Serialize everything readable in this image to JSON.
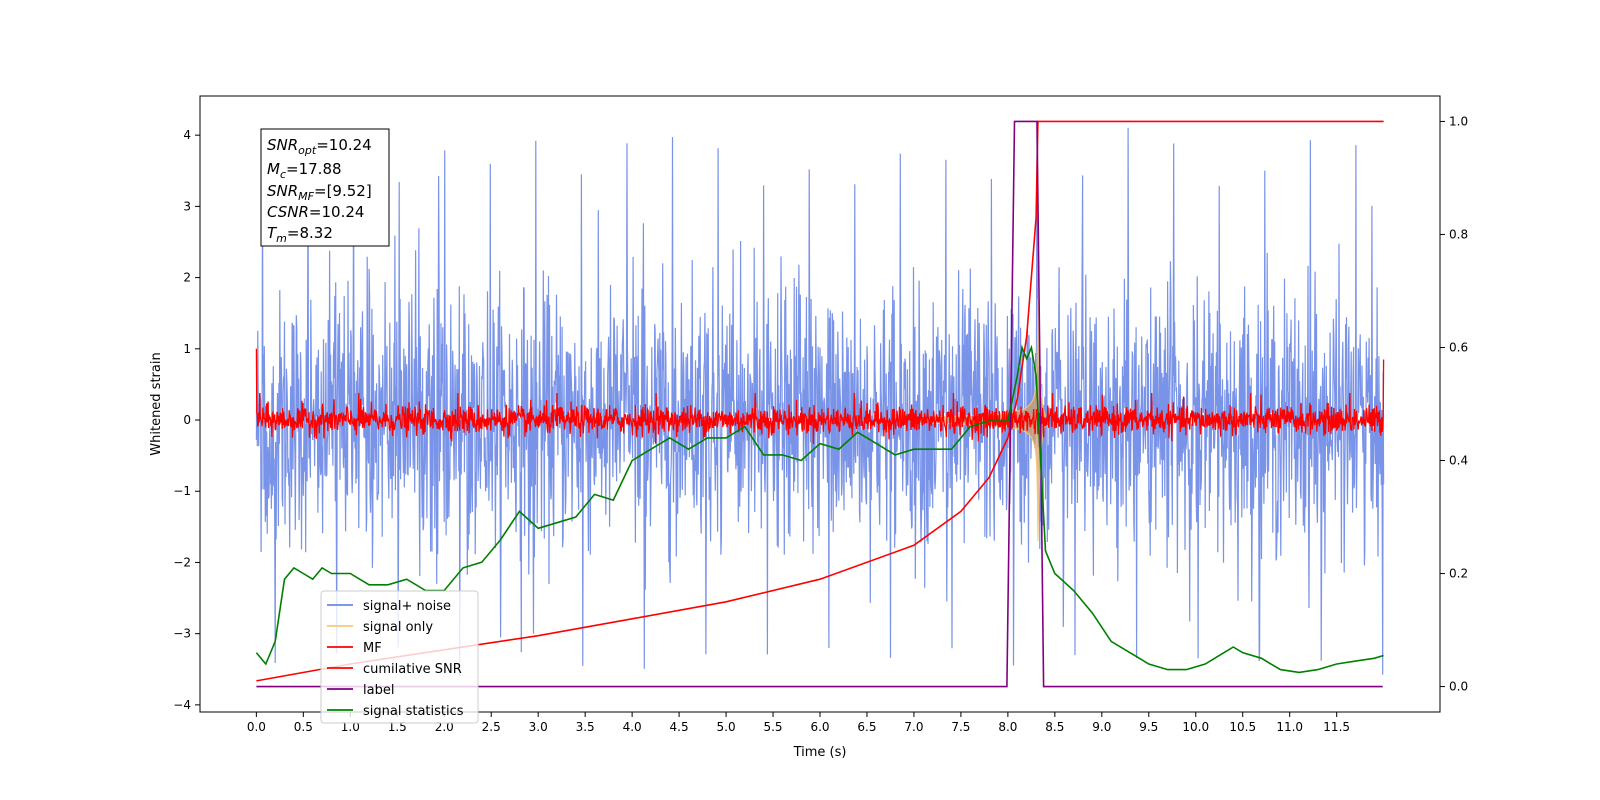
{
  "chart_data": {
    "type": "line",
    "xlabel": "Time (s)",
    "ylabel": "Whitened strain",
    "xlim": [
      -0.6,
      12.6
    ],
    "ylim": [
      -4.1,
      4.55
    ],
    "y2lim": [
      -0.045,
      1.045
    ],
    "x_ticks": [
      "0.0",
      "0.5",
      "1.0",
      "1.5",
      "2.0",
      "2.5",
      "3.0",
      "3.5",
      "4.0",
      "4.5",
      "5.0",
      "5.5",
      "6.0",
      "6.5",
      "7.0",
      "7.5",
      "8.0",
      "8.5",
      "9.0",
      "9.5",
      "10.0",
      "10.5",
      "11.0",
      "11.5"
    ],
    "y_ticks": [
      "−4",
      "−3",
      "−2",
      "−1",
      "0",
      "1",
      "2",
      "3",
      "4"
    ],
    "y2_ticks": [
      "0.0",
      "0.2",
      "0.4",
      "0.6",
      "0.8",
      "1.0"
    ],
    "annotation": {
      "snr_opt": {
        "base": "SNR",
        "sub": "opt",
        "value": "=10.24"
      },
      "mc": {
        "base": "M",
        "sub": "c",
        "value": "=17.88"
      },
      "snr_mf": {
        "base": "SNR",
        "sub": "MF",
        "value": "=[9.52]"
      },
      "csnr": {
        "base": "CSNR",
        "sub": "",
        "value": "=10.24"
      },
      "tm": {
        "base": "T",
        "sub": "m",
        "value": "=8.32"
      }
    },
    "legend": {
      "placement": "lower-left",
      "entries": [
        {
          "label": "signal+ noise",
          "color": "#6c8ae6"
        },
        {
          "label": "signal only",
          "color": "#f5c87a"
        },
        {
          "label": "MF",
          "color": "#ff0000"
        },
        {
          "label": "cumilative SNR",
          "color": "#ff0000"
        },
        {
          "label": "label",
          "color": "#800080"
        },
        {
          "label": "signal statistics",
          "color": "#008000"
        }
      ]
    },
    "series": [
      {
        "name": "signal+ noise",
        "axis": "left",
        "kind": "noise",
        "x_range": [
          0.0,
          12.0
        ],
        "std": 0.9,
        "peak_max": 4.15,
        "peak_min": -3.67
      },
      {
        "name": "signal only",
        "axis": "left",
        "kind": "chirp",
        "merger_time": 8.32,
        "peak_amplitude": 1.7
      },
      {
        "name": "MF",
        "axis": "left",
        "kind": "noise",
        "x_range": [
          0.0,
          12.0
        ],
        "std": 0.1,
        "start_value": 1.0,
        "end_value": 0.85
      },
      {
        "name": "cumilative SNR",
        "axis": "right",
        "x": [
          0.0,
          1.0,
          2.0,
          3.0,
          4.0,
          5.0,
          6.0,
          7.0,
          7.5,
          7.8,
          8.0,
          8.1,
          8.2,
          8.3,
          8.32,
          12.0
        ],
        "y": [
          0.01,
          0.04,
          0.065,
          0.09,
          0.12,
          0.15,
          0.19,
          0.25,
          0.31,
          0.37,
          0.44,
          0.51,
          0.62,
          0.83,
          1.0,
          1.0
        ]
      },
      {
        "name": "label",
        "axis": "right",
        "x": [
          0.0,
          7.99,
          8.07,
          8.31,
          8.38,
          11.99
        ],
        "y": [
          0.0,
          0.0,
          1.0,
          1.0,
          0.0,
          0.0
        ]
      },
      {
        "name": "signal statistics",
        "axis": "right",
        "x": [
          0.0,
          0.1,
          0.2,
          0.3,
          0.4,
          0.5,
          0.6,
          0.7,
          0.8,
          1.0,
          1.2,
          1.4,
          1.6,
          1.8,
          2.0,
          2.2,
          2.4,
          2.6,
          2.8,
          3.0,
          3.2,
          3.4,
          3.6,
          3.8,
          4.0,
          4.2,
          4.4,
          4.6,
          4.8,
          5.0,
          5.2,
          5.4,
          5.6,
          5.8,
          6.0,
          6.2,
          6.4,
          6.6,
          6.8,
          7.0,
          7.2,
          7.4,
          7.6,
          7.8,
          8.0,
          8.1,
          8.15,
          8.2,
          8.25,
          8.3,
          8.4,
          8.5,
          8.7,
          8.9,
          9.1,
          9.3,
          9.5,
          9.7,
          9.9,
          10.1,
          10.3,
          10.4,
          10.5,
          10.7,
          10.9,
          11.1,
          11.3,
          11.5,
          11.7,
          11.9,
          12.0
        ],
        "y": [
          0.06,
          0.04,
          0.08,
          0.19,
          0.21,
          0.2,
          0.19,
          0.21,
          0.2,
          0.2,
          0.18,
          0.18,
          0.19,
          0.17,
          0.17,
          0.21,
          0.22,
          0.26,
          0.31,
          0.28,
          0.29,
          0.3,
          0.34,
          0.33,
          0.4,
          0.42,
          0.44,
          0.42,
          0.44,
          0.44,
          0.46,
          0.41,
          0.41,
          0.4,
          0.43,
          0.42,
          0.45,
          0.43,
          0.41,
          0.42,
          0.42,
          0.42,
          0.46,
          0.47,
          0.47,
          0.55,
          0.6,
          0.58,
          0.6,
          0.55,
          0.24,
          0.2,
          0.17,
          0.13,
          0.08,
          0.06,
          0.04,
          0.03,
          0.03,
          0.04,
          0.06,
          0.07,
          0.06,
          0.05,
          0.03,
          0.025,
          0.03,
          0.04,
          0.045,
          0.05,
          0.055
        ]
      }
    ]
  }
}
